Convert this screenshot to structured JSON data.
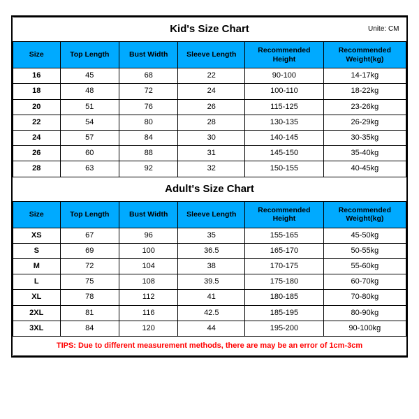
{
  "colors": {
    "header_bg": "#00aaff",
    "border": "#000000",
    "tips_text": "#ff0000",
    "background": "#ffffff"
  },
  "kids": {
    "title": "Kid's Size Chart",
    "unite": "Unite: CM",
    "columns": [
      "Size",
      "Top Length",
      "Bust Width",
      "Sleeve Length",
      "Recommended Height",
      "Recommended Weight(kg)"
    ],
    "rows": [
      [
        "16",
        "45",
        "68",
        "22",
        "90-100",
        "14-17kg"
      ],
      [
        "18",
        "48",
        "72",
        "24",
        "100-110",
        "18-22kg"
      ],
      [
        "20",
        "51",
        "76",
        "26",
        "115-125",
        "23-26kg"
      ],
      [
        "22",
        "54",
        "80",
        "28",
        "130-135",
        "26-29kg"
      ],
      [
        "24",
        "57",
        "84",
        "30",
        "140-145",
        "30-35kg"
      ],
      [
        "26",
        "60",
        "88",
        "31",
        "145-150",
        "35-40kg"
      ],
      [
        "28",
        "63",
        "92",
        "32",
        "150-155",
        "40-45kg"
      ]
    ]
  },
  "adults": {
    "title": "Adult's Size Chart",
    "columns": [
      "Size",
      "Top Length",
      "Bust Width",
      "Sleeve Length",
      "Recommended Height",
      "Recommended Weight(kg)"
    ],
    "rows": [
      [
        "XS",
        "67",
        "96",
        "35",
        "155-165",
        "45-50kg"
      ],
      [
        "S",
        "69",
        "100",
        "36.5",
        "165-170",
        "50-55kg"
      ],
      [
        "M",
        "72",
        "104",
        "38",
        "170-175",
        "55-60kg"
      ],
      [
        "L",
        "75",
        "108",
        "39.5",
        "175-180",
        "60-70kg"
      ],
      [
        "XL",
        "78",
        "112",
        "41",
        "180-185",
        "70-80kg"
      ],
      [
        "2XL",
        "81",
        "116",
        "42.5",
        "185-195",
        "80-90kg"
      ],
      [
        "3XL",
        "84",
        "120",
        "44",
        "195-200",
        "90-100kg"
      ]
    ]
  },
  "tips": "TIPS: Due to different measurement methods, there are may be an error of 1cm-3cm"
}
